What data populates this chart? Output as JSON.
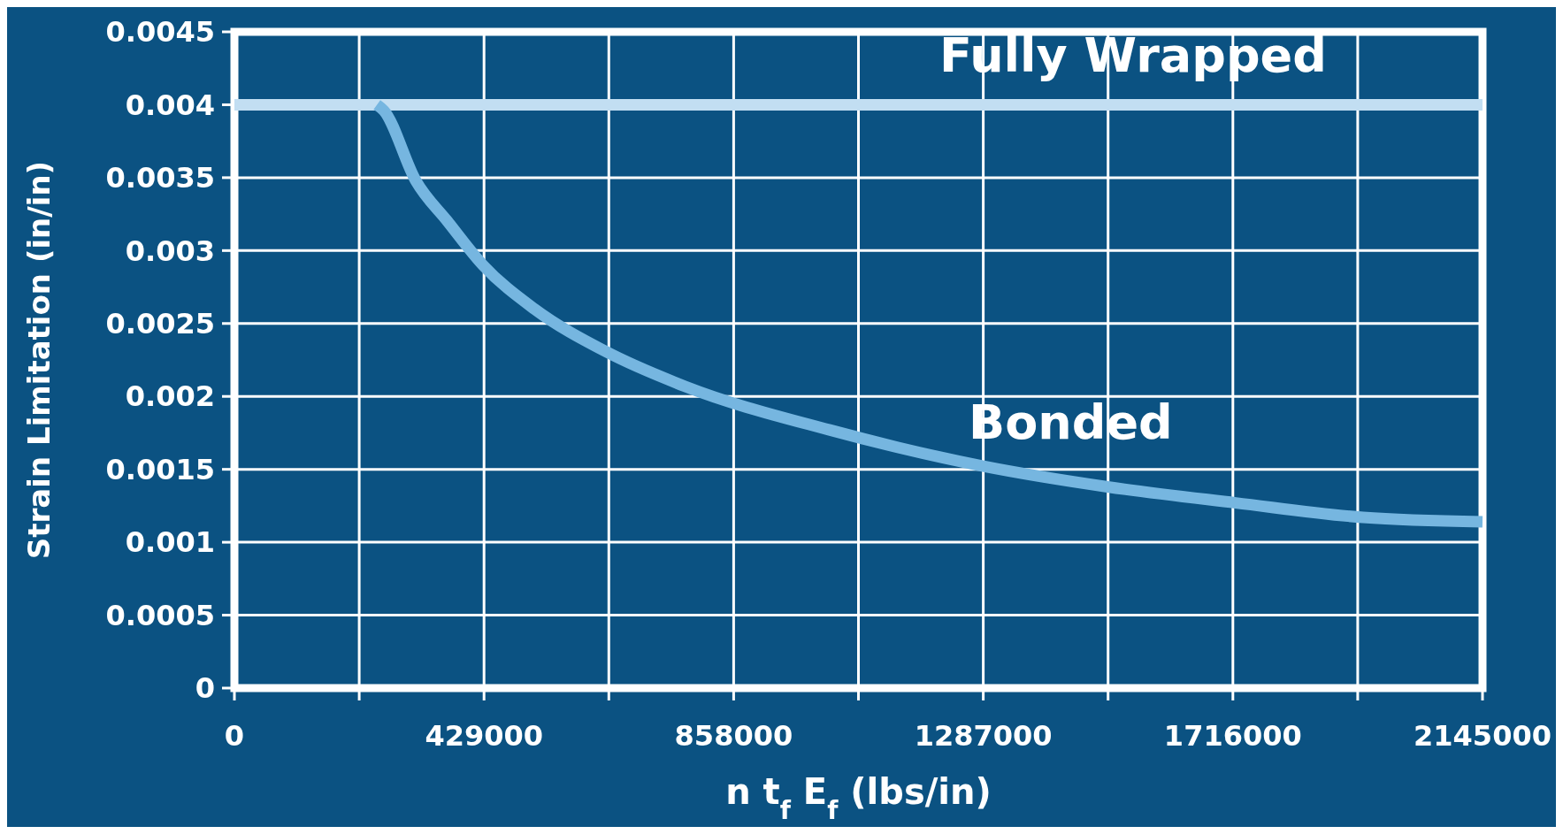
{
  "chart_data": {
    "type": "line",
    "xlabel": "n t$_{f}$ E$_{f}$ (lbs/in)",
    "ylabel": "Strain Limitation (in/in)",
    "series": [
      {
        "color": "#c2def2",
        "x": [
          0,
          2145000
        ],
        "values": [
          0.004,
          0.004
        ]
      },
      {
        "color": "#76b6e0",
        "x": [
          245000,
          256900,
          311600,
          366400,
          427200,
          515400,
          637000,
          773800,
          1023000,
          1289100,
          1500400,
          1720900,
          1939800,
          2145000
        ],
        "values": [
          0.004,
          0.00396,
          0.00348,
          0.0032,
          0.0029,
          0.0026,
          0.00231,
          0.00207,
          0.00177,
          0.00152,
          0.00138,
          0.00127,
          0.00117,
          0.00114
        ]
      }
    ],
    "annotations": [
      "Fully Wrapped",
      "Bonded"
    ],
    "xlim": [
      0,
      2145000
    ],
    "ylim": [
      0,
      0.0045
    ],
    "xticks": [
      0,
      {
        "value": 214500,
        "label": null
      },
      429000,
      {
        "value": 643500,
        "label": null
      },
      858000,
      {
        "value": 1072500,
        "label": null
      },
      1287000,
      {
        "value": 1501500,
        "label": null
      },
      1716000,
      {
        "value": 1930500,
        "label": null
      },
      2145000
    ],
    "yticks": [
      0,
      0.0005,
      0.001,
      0.0015,
      0.002,
      0.0025,
      0.003,
      0.0035,
      0.004,
      0.0045
    ],
    "grid": true,
    "marker": "none",
    "line_style": "solid"
  }
}
